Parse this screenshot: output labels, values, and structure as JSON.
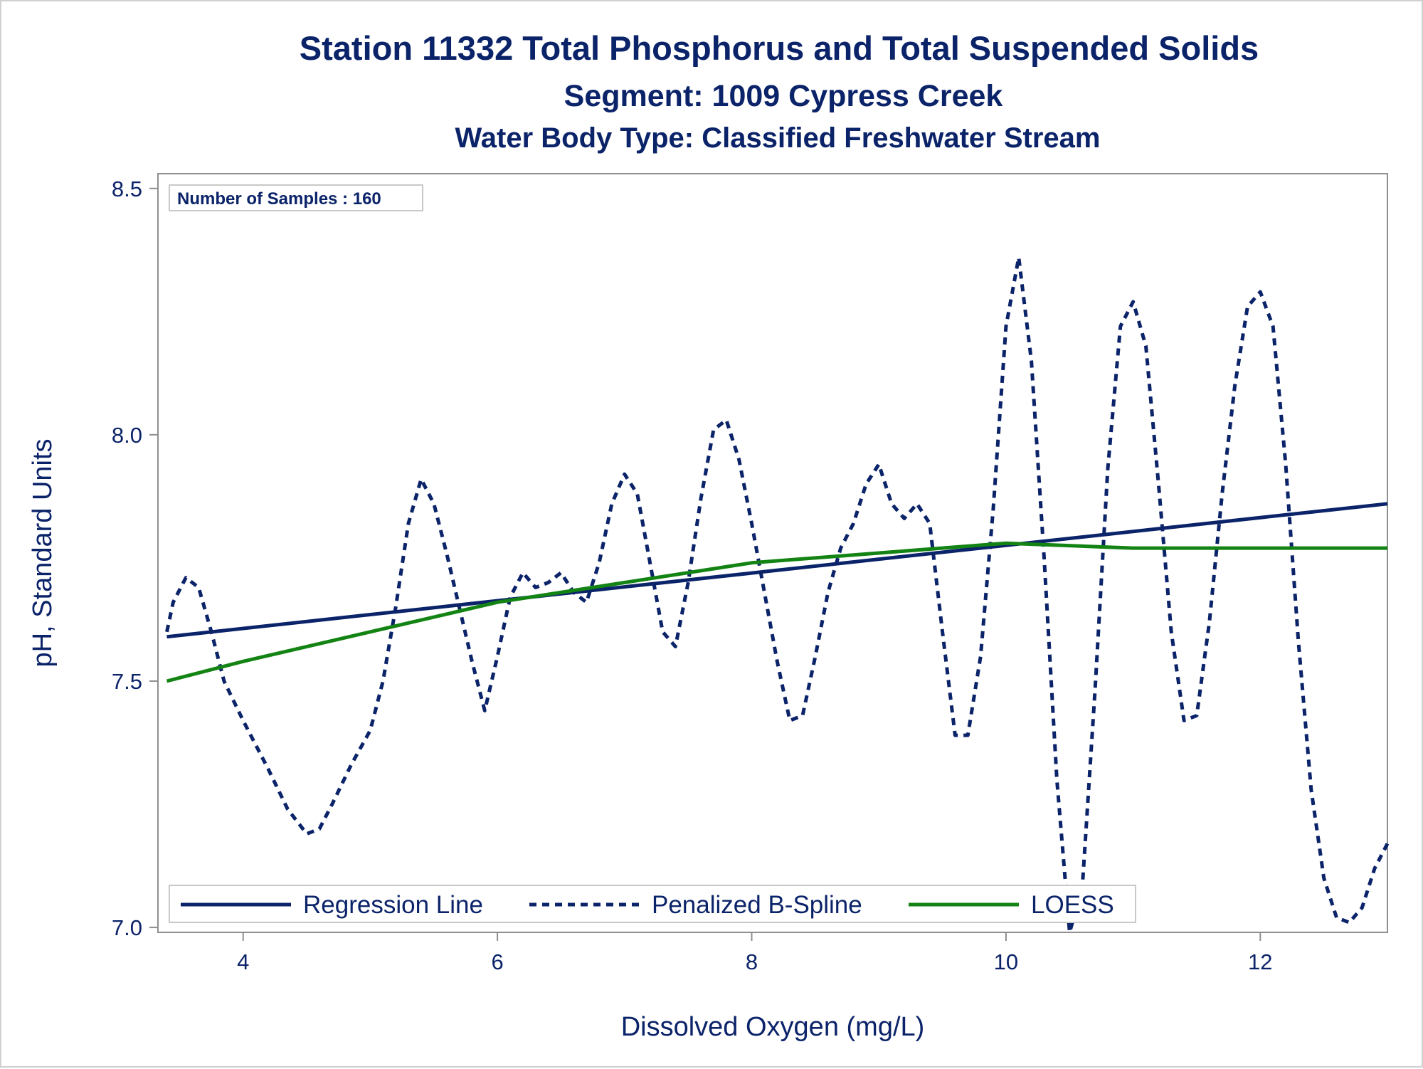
{
  "chart_data": {
    "type": "line",
    "title": "Station 11332  Total Phosphorus and Total Suspended Solids",
    "subtitle": "Segment: 1009  Cypress Creek",
    "subtitle2": "Water Body Type: Classified Freshwater Stream",
    "xlabel": "Dissolved Oxygen (mg/L)",
    "ylabel": "pH, Standard Units",
    "xlim": [
      3.33,
      13.0
    ],
    "ylim": [
      6.99,
      8.53
    ],
    "xticks": [
      4,
      6,
      8,
      10,
      12
    ],
    "yticks": [
      7.0,
      7.5,
      8.0,
      8.5
    ],
    "xtick_labels": [
      "4",
      "6",
      "8",
      "10",
      "12"
    ],
    "ytick_labels": [
      "7.0",
      "7.5",
      "8.0",
      "8.5"
    ],
    "grid": false,
    "legend_placement": "bottom-left inside",
    "annotation": "Number of Samples : 160",
    "series": [
      {
        "name": "Regression Line",
        "style": "solid",
        "color": "#0b2369",
        "x": [
          3.4,
          13.0
        ],
        "y": [
          7.59,
          7.86
        ]
      },
      {
        "name": "Penalized B-Spline",
        "style": "dashed",
        "color": "#0b2369",
        "x": [
          3.4,
          3.45,
          3.55,
          3.65,
          3.75,
          3.85,
          4.0,
          4.2,
          4.35,
          4.5,
          4.6,
          4.7,
          4.85,
          5.0,
          5.1,
          5.2,
          5.3,
          5.4,
          5.5,
          5.6,
          5.7,
          5.8,
          5.9,
          6.0,
          6.1,
          6.2,
          6.3,
          6.4,
          6.5,
          6.6,
          6.7,
          6.8,
          6.9,
          7.0,
          7.1,
          7.2,
          7.3,
          7.4,
          7.5,
          7.6,
          7.7,
          7.8,
          7.9,
          8.0,
          8.1,
          8.2,
          8.3,
          8.4,
          8.5,
          8.6,
          8.7,
          8.8,
          8.9,
          9.0,
          9.1,
          9.2,
          9.3,
          9.4,
          9.5,
          9.6,
          9.7,
          9.8,
          9.9,
          10.0,
          10.1,
          10.2,
          10.3,
          10.4,
          10.5,
          10.6,
          10.7,
          10.8,
          10.9,
          11.0,
          11.1,
          11.2,
          11.3,
          11.4,
          11.5,
          11.6,
          11.7,
          11.8,
          11.9,
          12.0,
          12.1,
          12.2,
          12.3,
          12.4,
          12.5,
          12.6,
          12.7,
          12.8,
          12.9,
          13.0
        ],
        "y": [
          7.6,
          7.66,
          7.71,
          7.69,
          7.6,
          7.5,
          7.42,
          7.32,
          7.24,
          7.19,
          7.2,
          7.25,
          7.33,
          7.4,
          7.5,
          7.65,
          7.82,
          7.91,
          7.86,
          7.76,
          7.65,
          7.54,
          7.44,
          7.55,
          7.67,
          7.72,
          7.69,
          7.7,
          7.72,
          7.68,
          7.66,
          7.74,
          7.86,
          7.92,
          7.88,
          7.74,
          7.6,
          7.57,
          7.7,
          7.87,
          8.01,
          8.03,
          7.95,
          7.82,
          7.68,
          7.54,
          7.42,
          7.43,
          7.55,
          7.68,
          7.77,
          7.82,
          7.9,
          7.94,
          7.86,
          7.83,
          7.86,
          7.82,
          7.6,
          7.39,
          7.39,
          7.55,
          7.85,
          8.22,
          8.36,
          8.15,
          7.75,
          7.3,
          6.99,
          7.08,
          7.48,
          7.93,
          8.22,
          8.27,
          8.18,
          7.9,
          7.6,
          7.42,
          7.43,
          7.62,
          7.88,
          8.1,
          8.26,
          8.29,
          8.22,
          7.94,
          7.58,
          7.28,
          7.1,
          7.02,
          7.01,
          7.04,
          7.12,
          7.17
        ]
      },
      {
        "name": "LOESS",
        "style": "solid",
        "color": "#138413",
        "x": [
          3.4,
          4.0,
          5.0,
          6.0,
          7.0,
          8.0,
          9.0,
          10.0,
          11.0,
          12.0,
          13.0
        ],
        "y": [
          7.5,
          7.54,
          7.6,
          7.66,
          7.7,
          7.74,
          7.76,
          7.78,
          7.77,
          7.77,
          7.77
        ]
      }
    ]
  }
}
